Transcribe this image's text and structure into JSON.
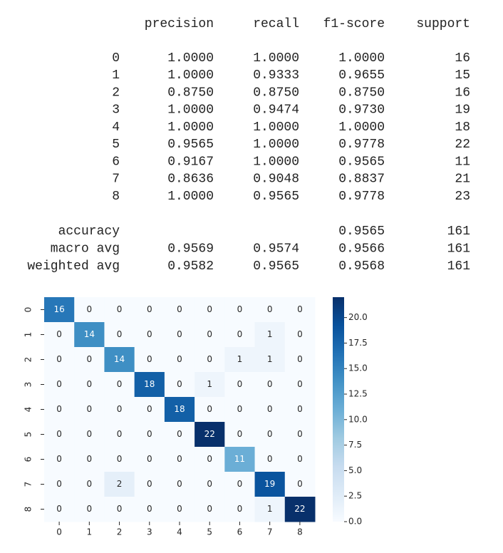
{
  "report": {
    "columns": [
      "precision",
      "recall",
      "f1-score",
      "support"
    ],
    "rows": [
      {
        "label": "0",
        "precision": "1.0000",
        "recall": "1.0000",
        "f1-score": "1.0000",
        "support": "16"
      },
      {
        "label": "1",
        "precision": "1.0000",
        "recall": "0.9333",
        "f1-score": "0.9655",
        "support": "15"
      },
      {
        "label": "2",
        "precision": "0.8750",
        "recall": "0.8750",
        "f1-score": "0.8750",
        "support": "16"
      },
      {
        "label": "3",
        "precision": "1.0000",
        "recall": "0.9474",
        "f1-score": "0.9730",
        "support": "19"
      },
      {
        "label": "4",
        "precision": "1.0000",
        "recall": "1.0000",
        "f1-score": "1.0000",
        "support": "18"
      },
      {
        "label": "5",
        "precision": "0.9565",
        "recall": "1.0000",
        "f1-score": "0.9778",
        "support": "22"
      },
      {
        "label": "6",
        "precision": "0.9167",
        "recall": "1.0000",
        "f1-score": "0.9565",
        "support": "11"
      },
      {
        "label": "7",
        "precision": "0.8636",
        "recall": "0.9048",
        "f1-score": "0.8837",
        "support": "21"
      },
      {
        "label": "8",
        "precision": "1.0000",
        "recall": "0.9565",
        "f1-score": "0.9778",
        "support": "23"
      }
    ],
    "summary": [
      {
        "label": "accuracy",
        "f1-score": "0.9565",
        "support": "161"
      },
      {
        "label": "macro avg",
        "precision": "0.9569",
        "recall": "0.9574",
        "f1-score": "0.9566",
        "support": "161"
      },
      {
        "label": "weighted avg",
        "precision": "0.9582",
        "recall": "0.9565",
        "f1-score": "0.9568",
        "support": "161"
      }
    ]
  },
  "chart_data": {
    "type": "heatmap",
    "x": [
      "0",
      "1",
      "2",
      "3",
      "4",
      "5",
      "6",
      "7",
      "8"
    ],
    "y": [
      "0",
      "1",
      "2",
      "3",
      "4",
      "5",
      "6",
      "7",
      "8"
    ],
    "values": [
      [
        16,
        0,
        0,
        0,
        0,
        0,
        0,
        0,
        0
      ],
      [
        0,
        14,
        0,
        0,
        0,
        0,
        0,
        1,
        0
      ],
      [
        0,
        0,
        14,
        0,
        0,
        0,
        1,
        1,
        0
      ],
      [
        0,
        0,
        0,
        18,
        0,
        1,
        0,
        0,
        0
      ],
      [
        0,
        0,
        0,
        0,
        18,
        0,
        0,
        0,
        0
      ],
      [
        0,
        0,
        0,
        0,
        0,
        22,
        0,
        0,
        0
      ],
      [
        0,
        0,
        0,
        0,
        0,
        0,
        11,
        0,
        0
      ],
      [
        0,
        0,
        2,
        0,
        0,
        0,
        0,
        19,
        0
      ],
      [
        0,
        0,
        0,
        0,
        0,
        0,
        0,
        1,
        22
      ]
    ],
    "clim": [
      0,
      22
    ],
    "cticks": [
      {
        "value": 0,
        "label": "0.0"
      },
      {
        "value": 2.5,
        "label": "2.5"
      },
      {
        "value": 5,
        "label": "5.0"
      },
      {
        "value": 7.5,
        "label": "7.5"
      },
      {
        "value": 10,
        "label": "10.0"
      },
      {
        "value": 12.5,
        "label": "12.5"
      },
      {
        "value": 15,
        "label": "15.0"
      },
      {
        "value": 17.5,
        "label": "17.5"
      },
      {
        "value": 20,
        "label": "20.0"
      }
    ],
    "cmap": [
      "#f7fbff",
      "#deebf7",
      "#c6dbef",
      "#9ecae1",
      "#6baed6",
      "#4292c6",
      "#2171b5",
      "#08519c",
      "#08306b"
    ]
  }
}
